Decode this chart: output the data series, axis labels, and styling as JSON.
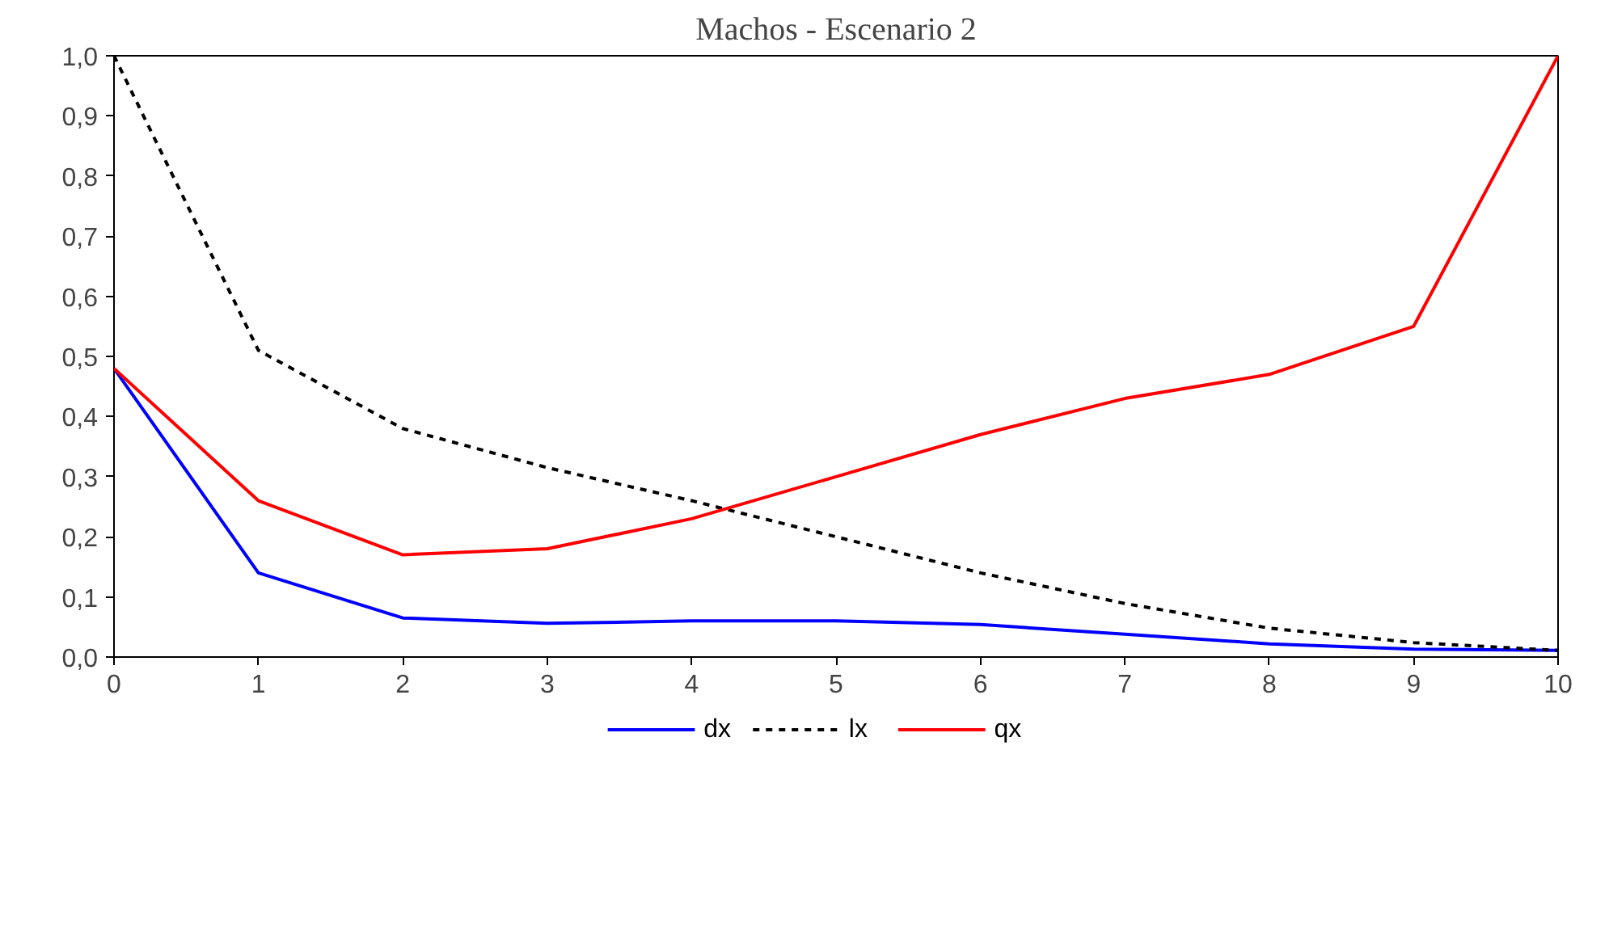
{
  "chart_data": {
    "type": "line",
    "title": "Machos - Escenario 2",
    "x": [
      0,
      1,
      2,
      3,
      4,
      5,
      6,
      7,
      8,
      9,
      10
    ],
    "series": [
      {
        "name": "dx",
        "color": "#0000ff",
        "line_style": "solid",
        "values": [
          0.48,
          0.14,
          0.065,
          0.056,
          0.06,
          0.06,
          0.054,
          0.038,
          0.022,
          0.013,
          0.011
        ]
      },
      {
        "name": "lx",
        "color": "#000000",
        "line_style": "dashed",
        "values": [
          1.0,
          0.51,
          0.38,
          0.315,
          0.26,
          0.2,
          0.14,
          0.089,
          0.048,
          0.024,
          0.011
        ]
      },
      {
        "name": "qx",
        "color": "#ff0000",
        "line_style": "solid",
        "values": [
          0.48,
          0.26,
          0.17,
          0.18,
          0.23,
          0.3,
          0.37,
          0.43,
          0.47,
          0.55,
          1.0
        ]
      }
    ],
    "xlim": [
      0,
      10
    ],
    "xticks": [
      0,
      1,
      2,
      3,
      4,
      5,
      6,
      7,
      8,
      9,
      10
    ],
    "ylim": [
      0,
      1
    ],
    "yticks": [
      {
        "value": 0,
        "label": "0,0"
      },
      {
        "value": 0.1,
        "label": "0,1"
      },
      {
        "value": 0.2,
        "label": "0,2"
      },
      {
        "value": 0.3,
        "label": "0,3"
      },
      {
        "value": 0.4,
        "label": "0,4"
      },
      {
        "value": 0.5,
        "label": "0,5"
      },
      {
        "value": 0.6,
        "label": "0,6"
      },
      {
        "value": 0.7,
        "label": "0,7"
      },
      {
        "value": 0.8,
        "label": "0,8"
      },
      {
        "value": 0.9,
        "label": "0,9"
      },
      {
        "value": 1.0,
        "label": "1,0"
      }
    ],
    "grid": false,
    "legend": "bottom",
    "marker": "none"
  }
}
